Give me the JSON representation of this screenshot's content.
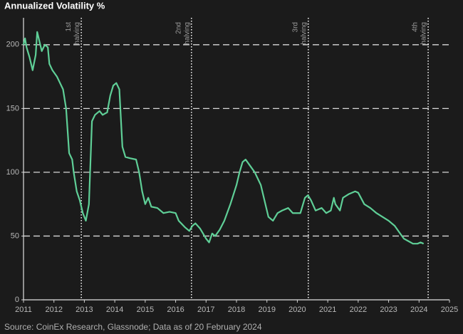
{
  "chart_data": {
    "type": "line",
    "title": "Annualized Volatility %",
    "source": "Source: CoinEx Research, Glassnode; Data as of 20 February 2024",
    "xlim": [
      2011,
      2025
    ],
    "xticks": [
      2011,
      2012,
      2013,
      2014,
      2015,
      2016,
      2017,
      2018,
      2019,
      2020,
      2021,
      2022,
      2023,
      2024,
      2025
    ],
    "ylim": [
      0,
      220
    ],
    "yticks": [
      0,
      50,
      100,
      150,
      200
    ],
    "grid": true,
    "annotations": [
      {
        "x": 2012.9,
        "lines": [
          "1st",
          "halving"
        ]
      },
      {
        "x": 2016.52,
        "lines": [
          "2nd",
          "halving"
        ]
      },
      {
        "x": 2020.36,
        "lines": [
          "3rd",
          "halving"
        ]
      },
      {
        "x": 2024.3,
        "lines": [
          "4th",
          "halving"
        ]
      }
    ],
    "series": [
      {
        "name": "Annualized Volatility",
        "color": "#5fcf97",
        "x": [
          2011.0,
          2011.05,
          2011.1,
          2011.2,
          2011.3,
          2011.4,
          2011.45,
          2011.5,
          2011.6,
          2011.7,
          2011.8,
          2011.85,
          2011.95,
          2012.1,
          2012.2,
          2012.3,
          2012.4,
          2012.5,
          2012.6,
          2012.65,
          2012.75,
          2012.85,
          2012.95,
          2013.05,
          2013.15,
          2013.25,
          2013.35,
          2013.5,
          2013.6,
          2013.75,
          2013.85,
          2013.95,
          2014.05,
          2014.15,
          2014.25,
          2014.35,
          2014.5,
          2014.7,
          2014.8,
          2014.9,
          2015.0,
          2015.1,
          2015.2,
          2015.4,
          2015.6,
          2015.8,
          2016.0,
          2016.1,
          2016.3,
          2016.45,
          2016.55,
          2016.65,
          2016.8,
          2016.9,
          2017.0,
          2017.1,
          2017.2,
          2017.3,
          2017.45,
          2017.6,
          2017.8,
          2018.0,
          2018.1,
          2018.2,
          2018.3,
          2018.45,
          2018.6,
          2018.8,
          2018.9,
          2019.05,
          2019.2,
          2019.35,
          2019.5,
          2019.7,
          2019.85,
          2020.1,
          2020.25,
          2020.35,
          2020.45,
          2020.6,
          2020.8,
          2020.95,
          2021.1,
          2021.2,
          2021.25,
          2021.4,
          2021.5,
          2021.7,
          2021.9,
          2022.0,
          2022.2,
          2022.4,
          2022.6,
          2022.8,
          2023.0,
          2023.2,
          2023.35,
          2023.5,
          2023.65,
          2023.8,
          2023.95,
          2024.05,
          2024.15
        ],
        "values": [
          200,
          205,
          198,
          190,
          180,
          192,
          210,
          205,
          195,
          200,
          198,
          185,
          180,
          175,
          170,
          165,
          150,
          115,
          110,
          100,
          85,
          78,
          68,
          62,
          75,
          140,
          145,
          148,
          145,
          147,
          160,
          168,
          170,
          165,
          120,
          112,
          111,
          110,
          100,
          85,
          75,
          80,
          73,
          72,
          68,
          69,
          68,
          62,
          57,
          54,
          58,
          60,
          56,
          52,
          48,
          45,
          52,
          50,
          55,
          62,
          75,
          90,
          100,
          108,
          110,
          105,
          100,
          90,
          80,
          65,
          62,
          68,
          70,
          72,
          68,
          68,
          80,
          82,
          78,
          70,
          72,
          68,
          70,
          80,
          75,
          70,
          80,
          83,
          85,
          84,
          75,
          72,
          68,
          65,
          62,
          58,
          53,
          48,
          46,
          44,
          44,
          45,
          44
        ]
      }
    ]
  }
}
